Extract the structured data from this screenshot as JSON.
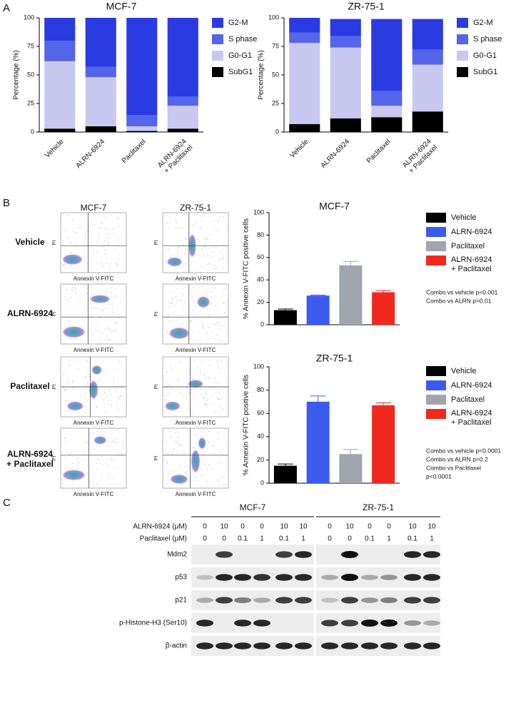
{
  "panel_labels": [
    "A",
    "B",
    "C"
  ],
  "chart_data": [
    {
      "type": "stacked_bar",
      "title": "MCF-7",
      "y_label": "Percentage (%)",
      "categories": [
        "Vehicle",
        "ALRN-6924",
        "Paclitaxel",
        "ALRN-6924\n+ Paclitaxel"
      ],
      "ylim": [
        0,
        100
      ],
      "yticks": [
        0,
        25,
        50,
        75,
        100
      ],
      "series": [
        {
          "name": "SubG1",
          "color": "#000000",
          "values": [
            3,
            5,
            1,
            3
          ]
        },
        {
          "name": "G0-G1",
          "color": "#c8c8f0",
          "values": [
            59,
            43,
            4,
            20
          ]
        },
        {
          "name": "S phase",
          "color": "#5565ea",
          "values": [
            18,
            9,
            10,
            8
          ]
        },
        {
          "name": "G2-M",
          "color": "#2b3be2",
          "values": [
            20,
            43,
            85,
            69
          ]
        }
      ]
    },
    {
      "type": "stacked_bar",
      "title": "ZR-75-1",
      "y_label": "Percentage (%)",
      "categories": [
        "Vehicle",
        "ALRN-6924",
        "Paclitaxel",
        "ALRN-6924\n+ Paclitaxel"
      ],
      "ylim": [
        0,
        100
      ],
      "yticks": [
        0,
        25,
        50,
        75,
        100
      ],
      "series": [
        {
          "name": "SubG1",
          "color": "#000000",
          "values": [
            7,
            12,
            13,
            18
          ]
        },
        {
          "name": "G0-G1",
          "color": "#c8c8f0",
          "values": [
            71,
            62,
            10,
            41
          ]
        },
        {
          "name": "S phase",
          "color": "#5565ea",
          "values": [
            9,
            10,
            13,
            13
          ]
        },
        {
          "name": "G2-M",
          "color": "#2b3be2",
          "values": [
            13,
            15,
            63,
            27
          ]
        }
      ]
    },
    {
      "type": "bar",
      "title": "MCF-7",
      "y_label": "% Annexin V-FITC positive cells",
      "categories": [
        "Vehicle",
        "ALRN-6924",
        "Paclitaxel",
        "ALRN-6924\n+ Paclitaxel"
      ],
      "values": [
        13,
        26,
        53,
        29
      ],
      "errors": [
        1,
        0.5,
        3.5,
        1.5
      ],
      "colors": [
        "#000000",
        "#3b5bf0",
        "#a0a4ac",
        "#f0281e"
      ],
      "ylim": [
        0,
        100
      ],
      "yticks": [
        0,
        20,
        40,
        60,
        80,
        100
      ],
      "annotations": [
        "Combo vs vehicle p<0.001",
        "Combo vs ALRN p=0.01"
      ]
    },
    {
      "type": "bar",
      "title": "ZR-75-1",
      "y_label": "% Annexin V-FITC positive cells",
      "categories": [
        "Vehicle",
        "ALRN-6924",
        "Paclitaxel",
        "ALRN-6924\n+ Paclitaxel"
      ],
      "values": [
        15,
        70,
        25,
        67
      ],
      "errors": [
        1.5,
        5,
        4,
        2
      ],
      "colors": [
        "#000000",
        "#3b5bf0",
        "#a0a4ac",
        "#f0281e"
      ],
      "ylim": [
        0,
        100
      ],
      "yticks": [
        0,
        20,
        40,
        60,
        80,
        100
      ],
      "annotations": [
        "Combo vs vehicle p<0.0001",
        "Combo vs ALRN p=0.2",
        "Combo vs Paclitaxel",
        "p<0.0001"
      ]
    }
  ],
  "flow": {
    "columns": [
      "MCF-7",
      "ZR-75-1"
    ],
    "rows": [
      "Vehicle",
      "ALRN-6924",
      "Paclitaxel",
      "ALRN-6924\n+ Paclitaxel"
    ],
    "y_label": "PI",
    "x_label": "Annexin V-FITC"
  },
  "western": {
    "columns": [
      "MCF-7",
      "ZR-75-1"
    ],
    "treatments": [
      {
        "label": "ALRN-6924 (μM)",
        "values": [
          0,
          10,
          0,
          0,
          10,
          10,
          0,
          10,
          0,
          0,
          10,
          10
        ]
      },
      {
        "label": "Paclitaxel (μM)",
        "values": [
          0,
          0,
          0.1,
          1,
          0.1,
          1,
          0,
          0,
          0.1,
          1,
          0.1,
          1
        ]
      }
    ],
    "proteins": [
      "Mdm2",
      "p53",
      "p21",
      "p-Histone-H3 (Ser10)",
      "β-actin"
    ]
  }
}
